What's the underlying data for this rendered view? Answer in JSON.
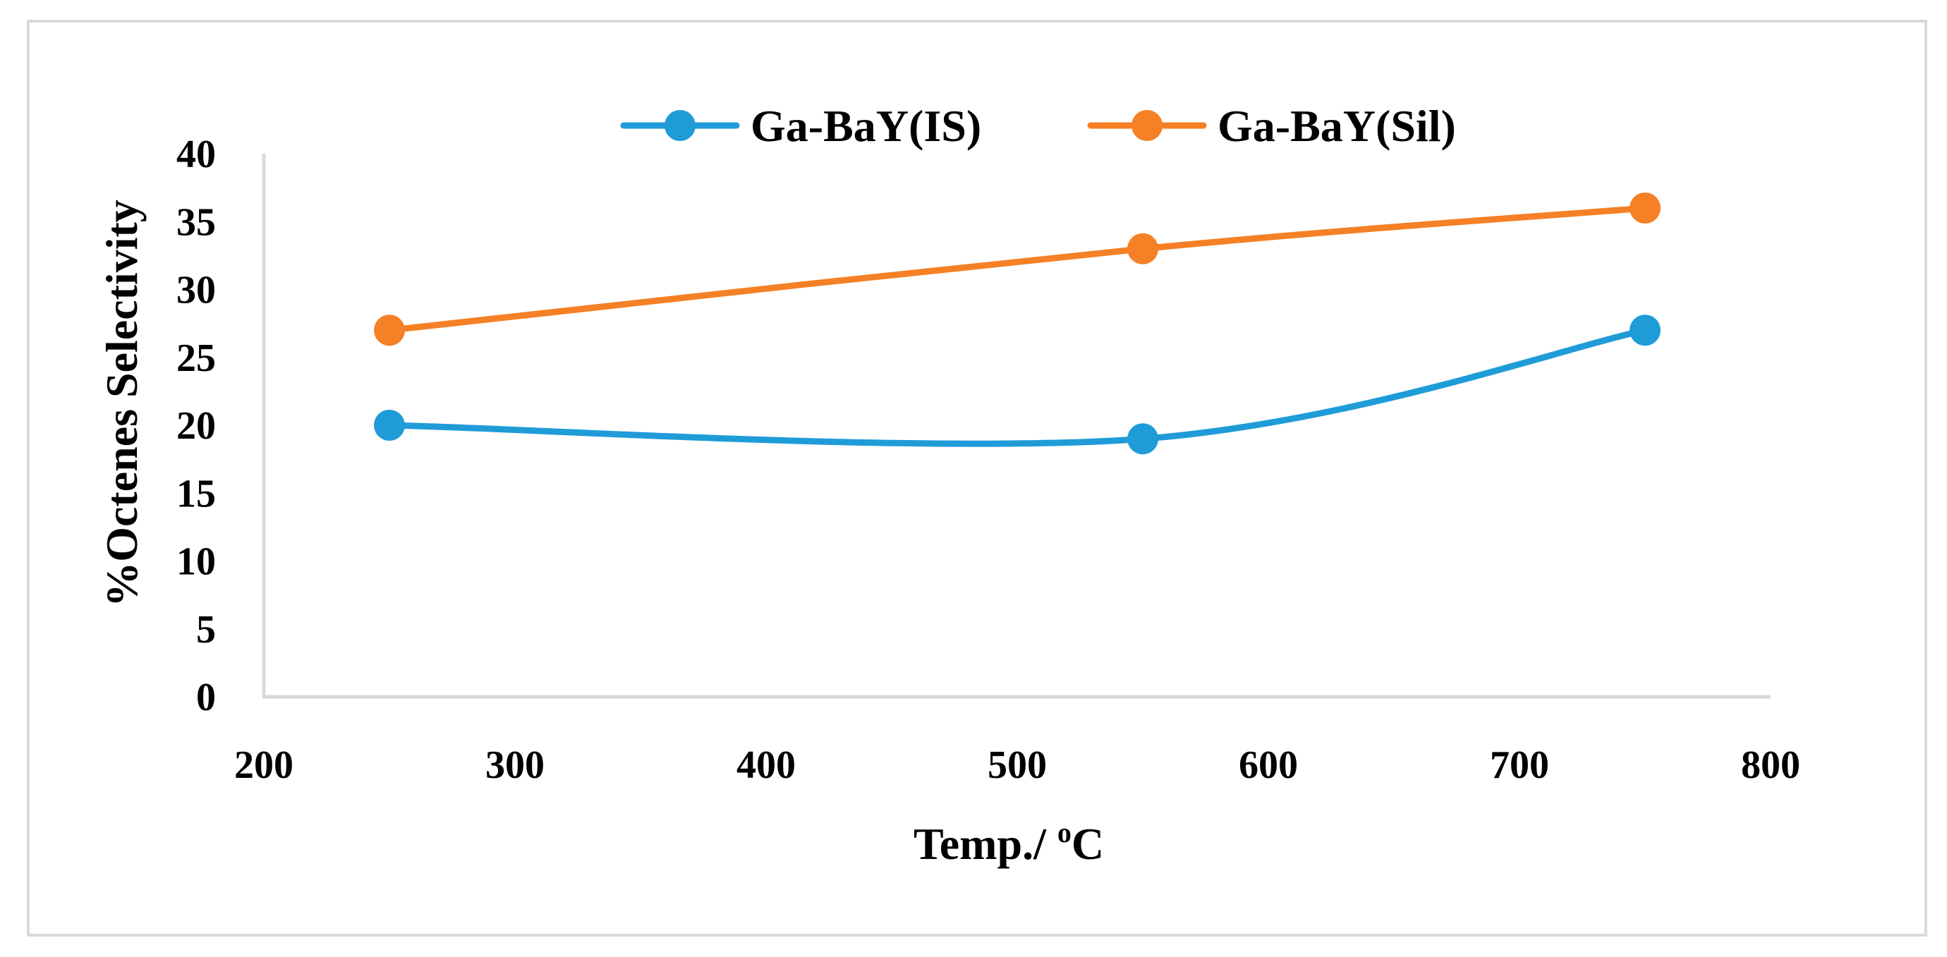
{
  "chart_data": {
    "type": "line",
    "title": "",
    "xlabel": "Temp./ ",
    "xlabel_sup": "o",
    "xlabel_unit": "C",
    "ylabel": "%Octenes Selectivity",
    "xlim": [
      200,
      800
    ],
    "ylim": [
      0,
      40
    ],
    "xticks": [
      200,
      300,
      400,
      500,
      600,
      700,
      800
    ],
    "yticks": [
      0,
      5,
      10,
      15,
      20,
      25,
      30,
      35,
      40
    ],
    "grid": false,
    "legend_position": "top-center",
    "smooth": true,
    "series": [
      {
        "name": "Ga-BaY(IS)",
        "color": "#1f9cd8",
        "x": [
          250,
          550,
          750
        ],
        "y": [
          20,
          19,
          27
        ]
      },
      {
        "name": "Ga-BaY(Sil)",
        "color": "#f58025",
        "x": [
          250,
          550,
          750
        ],
        "y": [
          27,
          33,
          36
        ]
      }
    ]
  }
}
